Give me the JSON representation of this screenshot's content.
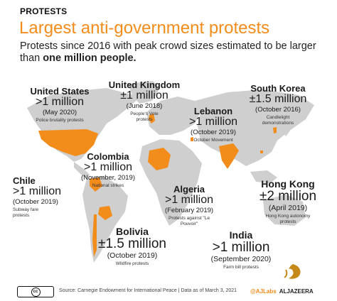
{
  "header": {
    "kicker": "PROTESTS",
    "title": "Largest anti-government protests",
    "subtitle_plain": "Protests since 2016 with peak crowd sizes estimated to be larger than ",
    "subtitle_bold": "one million people."
  },
  "colors": {
    "accent": "#f28c1b",
    "land": "#cfcfcf",
    "highlight": "#f28c1b"
  },
  "protests": [
    {
      "country": "United States",
      "size": ">1 million",
      "date": "(May 2020)",
      "desc": "Police brutality protests"
    },
    {
      "country": "United Kingdom",
      "size": "±1 million",
      "date": "(June 2018)",
      "desc": "People's Vote protests"
    },
    {
      "country": "Lebanon",
      "size": ">1 million",
      "date": "(October 2019)",
      "desc": "October Movement"
    },
    {
      "country": "South Korea",
      "size": "±1.5 million",
      "date": "(October 2016)",
      "desc": "Candlelight demonstrations"
    },
    {
      "country": "Colombia",
      "size": ">1 million",
      "date": "(November, 2019)",
      "desc": "National strikes"
    },
    {
      "country": "Chile",
      "size": ">1 million",
      "date": "(October 2019)",
      "desc": "Subway fare protests"
    },
    {
      "country": "Algeria",
      "size": ">1 million",
      "date": "(February 2019)",
      "desc": "Protests against \"Le Pouvoir\""
    },
    {
      "country": "Hong Kong",
      "size": "±2 million",
      "date": "(April 2019)",
      "desc": "Hong Kong autonomy protests"
    },
    {
      "country": "Bolivia",
      "size": "±1.5 million",
      "date": "(October 2019)",
      "desc": "Wildfire protests"
    },
    {
      "country": "India",
      "size": ">1 million",
      "date": "(September 2020)",
      "desc": "Farm bill protests"
    }
  ],
  "footer": {
    "license": "cc",
    "source": "Source: Carnegie Endowment for International Peace | Data as of March 3, 2021",
    "handle": "@AJLabs",
    "brand": "ALJAZEERA"
  },
  "icons": {
    "license": "creative-commons-icon",
    "logo": "al-jazeera-logo-icon"
  }
}
